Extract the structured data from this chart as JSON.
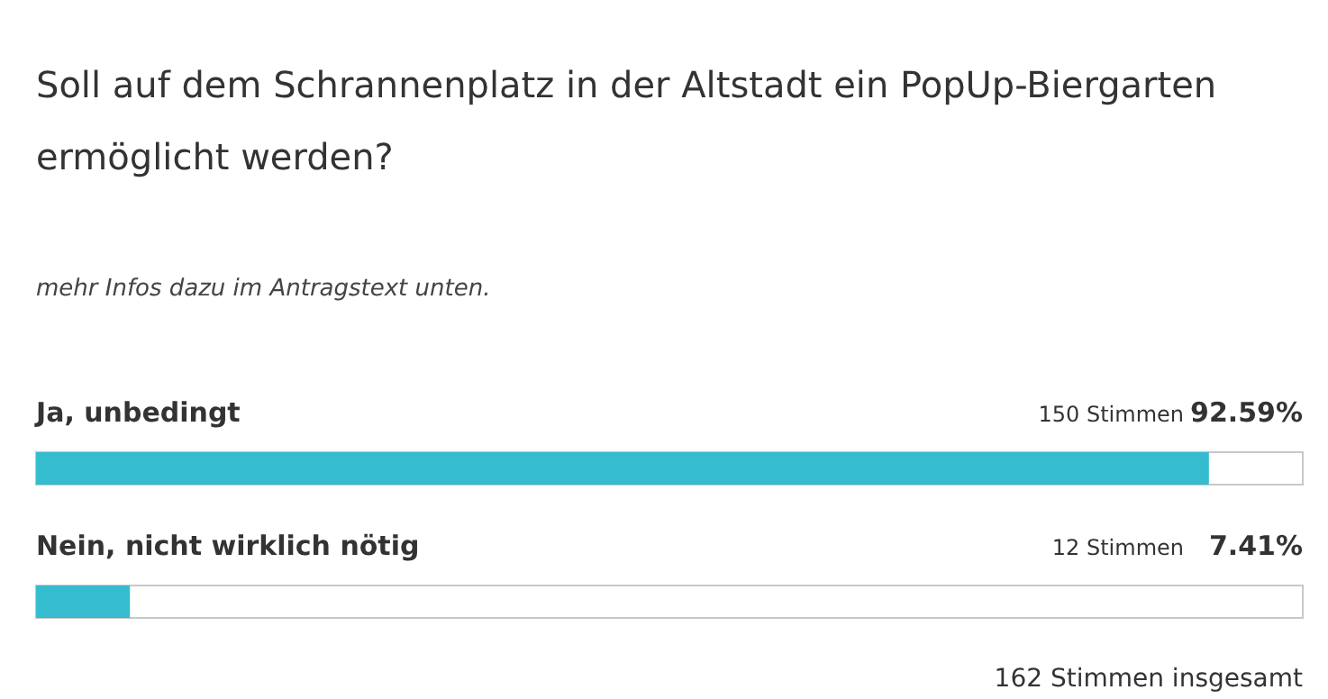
{
  "chart_data": {
    "type": "bar",
    "orientation": "horizontal",
    "title": "Soll auf dem Schrannenplatz in der Altstadt ein PopUp-Biergarten ermöglicht werden?",
    "subtitle": "mehr Infos dazu im Antragstext unten.",
    "categories": [
      "Ja, unbedingt",
      "Nein, nicht wirklich nötig"
    ],
    "values": [
      92.59,
      7.41
    ],
    "value_labels": [
      "92.59%",
      "7.41%"
    ],
    "color": "#35bccf",
    "xlim": [
      0,
      100
    ],
    "annotations": [
      "150 Stimmen",
      "12 Stimmen",
      "162 Stimmen insgesamt"
    ]
  }
}
